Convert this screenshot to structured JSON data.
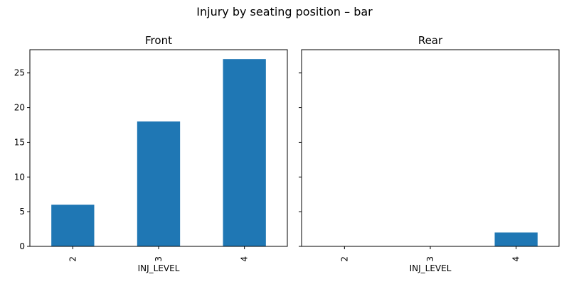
{
  "chart_data": {
    "title": "Injury by seating position – bar",
    "type": "bar",
    "colors": {
      "bar": "#1f77b4"
    },
    "grid": false,
    "shared_y": true,
    "ylim": [
      0,
      28.35
    ],
    "yticks": [
      0,
      5,
      10,
      15,
      20,
      25
    ],
    "panels": [
      {
        "title": "Front",
        "xlabel": "INJ_LEVEL",
        "categories": [
          "2",
          "3",
          "4"
        ],
        "values": [
          6,
          18,
          27
        ]
      },
      {
        "title": "Rear",
        "xlabel": "INJ_LEVEL",
        "categories": [
          "2",
          "3",
          "4"
        ],
        "values": [
          0,
          0,
          2
        ]
      }
    ]
  }
}
